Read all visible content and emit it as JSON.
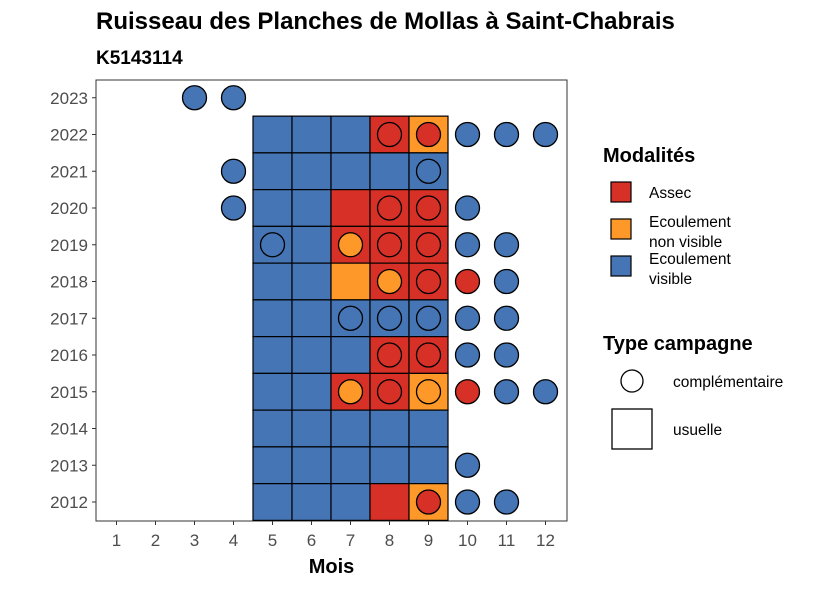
{
  "chart_data": {
    "type": "heatmap",
    "title": "Ruisseau des Planches de Mollas à Saint-Chabrais",
    "subtitle": "K5143114",
    "xlabel": "Mois",
    "ylabel": "",
    "x_ticks": [
      "1",
      "2",
      "3",
      "4",
      "5",
      "6",
      "7",
      "8",
      "9",
      "10",
      "11",
      "12"
    ],
    "y_ticks": [
      "2012",
      "2013",
      "2014",
      "2015",
      "2016",
      "2017",
      "2018",
      "2019",
      "2020",
      "2021",
      "2022",
      "2023"
    ],
    "xlim": [
      1,
      12
    ],
    "ylim": [
      2012,
      2023
    ],
    "grid": false,
    "legend_placement": "right",
    "legend": {
      "modalites_title": "Modalités",
      "modalites": [
        {
          "key": "assec",
          "lines": [
            "Assec"
          ],
          "color": "#d73027"
        },
        {
          "key": "non_visible",
          "lines": [
            "Ecoulement",
            "non visible"
          ],
          "color": "#fe9929"
        },
        {
          "key": "visible",
          "lines": [
            "Ecoulement",
            "visible"
          ],
          "color": "#4575b4"
        }
      ],
      "type_title": "Type campagne",
      "types": [
        {
          "key": "complementaire",
          "label": "complémentaire",
          "shape": "circle"
        },
        {
          "key": "usuelle",
          "label": "usuelle",
          "shape": "square"
        }
      ]
    },
    "colors": {
      "assec": "#d73027",
      "non_visible": "#fe9929",
      "visible": "#4575b4"
    },
    "tiles": [
      {
        "month": 5,
        "year": 2022,
        "value": "visible"
      },
      {
        "month": 6,
        "year": 2022,
        "value": "visible"
      },
      {
        "month": 7,
        "year": 2022,
        "value": "visible"
      },
      {
        "month": 8,
        "year": 2022,
        "value": "assec"
      },
      {
        "month": 9,
        "year": 2022,
        "value": "non_visible"
      },
      {
        "month": 5,
        "year": 2021,
        "value": "visible"
      },
      {
        "month": 6,
        "year": 2021,
        "value": "visible"
      },
      {
        "month": 7,
        "year": 2021,
        "value": "visible"
      },
      {
        "month": 8,
        "year": 2021,
        "value": "visible"
      },
      {
        "month": 9,
        "year": 2021,
        "value": "visible"
      },
      {
        "month": 5,
        "year": 2020,
        "value": "visible"
      },
      {
        "month": 6,
        "year": 2020,
        "value": "visible"
      },
      {
        "month": 7,
        "year": 2020,
        "value": "assec"
      },
      {
        "month": 8,
        "year": 2020,
        "value": "assec"
      },
      {
        "month": 9,
        "year": 2020,
        "value": "assec"
      },
      {
        "month": 5,
        "year": 2019,
        "value": "visible"
      },
      {
        "month": 6,
        "year": 2019,
        "value": "visible"
      },
      {
        "month": 7,
        "year": 2019,
        "value": "assec"
      },
      {
        "month": 8,
        "year": 2019,
        "value": "assec"
      },
      {
        "month": 9,
        "year": 2019,
        "value": "assec"
      },
      {
        "month": 5,
        "year": 2018,
        "value": "visible"
      },
      {
        "month": 6,
        "year": 2018,
        "value": "visible"
      },
      {
        "month": 7,
        "year": 2018,
        "value": "non_visible"
      },
      {
        "month": 8,
        "year": 2018,
        "value": "assec"
      },
      {
        "month": 9,
        "year": 2018,
        "value": "assec"
      },
      {
        "month": 5,
        "year": 2017,
        "value": "visible"
      },
      {
        "month": 6,
        "year": 2017,
        "value": "visible"
      },
      {
        "month": 7,
        "year": 2017,
        "value": "visible"
      },
      {
        "month": 8,
        "year": 2017,
        "value": "visible"
      },
      {
        "month": 9,
        "year": 2017,
        "value": "visible"
      },
      {
        "month": 5,
        "year": 2016,
        "value": "visible"
      },
      {
        "month": 6,
        "year": 2016,
        "value": "visible"
      },
      {
        "month": 7,
        "year": 2016,
        "value": "visible"
      },
      {
        "month": 8,
        "year": 2016,
        "value": "assec"
      },
      {
        "month": 9,
        "year": 2016,
        "value": "assec"
      },
      {
        "month": 5,
        "year": 2015,
        "value": "visible"
      },
      {
        "month": 6,
        "year": 2015,
        "value": "visible"
      },
      {
        "month": 7,
        "year": 2015,
        "value": "assec"
      },
      {
        "month": 8,
        "year": 2015,
        "value": "assec"
      },
      {
        "month": 9,
        "year": 2015,
        "value": "non_visible"
      },
      {
        "month": 5,
        "year": 2014,
        "value": "visible"
      },
      {
        "month": 6,
        "year": 2014,
        "value": "visible"
      },
      {
        "month": 7,
        "year": 2014,
        "value": "visible"
      },
      {
        "month": 8,
        "year": 2014,
        "value": "visible"
      },
      {
        "month": 9,
        "year": 2014,
        "value": "visible"
      },
      {
        "month": 5,
        "year": 2013,
        "value": "visible"
      },
      {
        "month": 6,
        "year": 2013,
        "value": "visible"
      },
      {
        "month": 7,
        "year": 2013,
        "value": "visible"
      },
      {
        "month": 8,
        "year": 2013,
        "value": "visible"
      },
      {
        "month": 9,
        "year": 2013,
        "value": "visible"
      },
      {
        "month": 5,
        "year": 2012,
        "value": "visible"
      },
      {
        "month": 6,
        "year": 2012,
        "value": "visible"
      },
      {
        "month": 7,
        "year": 2012,
        "value": "visible"
      },
      {
        "month": 8,
        "year": 2012,
        "value": "assec"
      },
      {
        "month": 9,
        "year": 2012,
        "value": "non_visible"
      }
    ],
    "points": [
      {
        "month": 3,
        "year": 2023,
        "value": "visible"
      },
      {
        "month": 4,
        "year": 2023,
        "value": "visible"
      },
      {
        "month": 8,
        "year": 2022,
        "value": "assec"
      },
      {
        "month": 9,
        "year": 2022,
        "value": "assec"
      },
      {
        "month": 10,
        "year": 2022,
        "value": "visible"
      },
      {
        "month": 11,
        "year": 2022,
        "value": "visible"
      },
      {
        "month": 12,
        "year": 2022,
        "value": "visible"
      },
      {
        "month": 4,
        "year": 2021,
        "value": "visible"
      },
      {
        "month": 9,
        "year": 2021,
        "value": "visible"
      },
      {
        "month": 4,
        "year": 2020,
        "value": "visible"
      },
      {
        "month": 8,
        "year": 2020,
        "value": "assec"
      },
      {
        "month": 9,
        "year": 2020,
        "value": "assec"
      },
      {
        "month": 10,
        "year": 2020,
        "value": "visible"
      },
      {
        "month": 5,
        "year": 2019,
        "value": "visible"
      },
      {
        "month": 7,
        "year": 2019,
        "value": "non_visible"
      },
      {
        "month": 8,
        "year": 2019,
        "value": "assec"
      },
      {
        "month": 9,
        "year": 2019,
        "value": "assec"
      },
      {
        "month": 10,
        "year": 2019,
        "value": "visible"
      },
      {
        "month": 11,
        "year": 2019,
        "value": "visible"
      },
      {
        "month": 8,
        "year": 2018,
        "value": "non_visible"
      },
      {
        "month": 9,
        "year": 2018,
        "value": "assec"
      },
      {
        "month": 10,
        "year": 2018,
        "value": "assec"
      },
      {
        "month": 11,
        "year": 2018,
        "value": "visible"
      },
      {
        "month": 7,
        "year": 2017,
        "value": "visible"
      },
      {
        "month": 8,
        "year": 2017,
        "value": "visible"
      },
      {
        "month": 9,
        "year": 2017,
        "value": "visible"
      },
      {
        "month": 10,
        "year": 2017,
        "value": "visible"
      },
      {
        "month": 11,
        "year": 2017,
        "value": "visible"
      },
      {
        "month": 8,
        "year": 2016,
        "value": "assec"
      },
      {
        "month": 9,
        "year": 2016,
        "value": "assec"
      },
      {
        "month": 10,
        "year": 2016,
        "value": "visible"
      },
      {
        "month": 11,
        "year": 2016,
        "value": "visible"
      },
      {
        "month": 7,
        "year": 2015,
        "value": "non_visible"
      },
      {
        "month": 8,
        "year": 2015,
        "value": "assec"
      },
      {
        "month": 9,
        "year": 2015,
        "value": "non_visible"
      },
      {
        "month": 10,
        "year": 2015,
        "value": "assec"
      },
      {
        "month": 11,
        "year": 2015,
        "value": "visible"
      },
      {
        "month": 12,
        "year": 2015,
        "value": "visible"
      },
      {
        "month": 10,
        "year": 2013,
        "value": "visible"
      },
      {
        "month": 9,
        "year": 2012,
        "value": "assec"
      },
      {
        "month": 10,
        "year": 2012,
        "value": "visible"
      },
      {
        "month": 11,
        "year": 2012,
        "value": "visible"
      }
    ]
  }
}
